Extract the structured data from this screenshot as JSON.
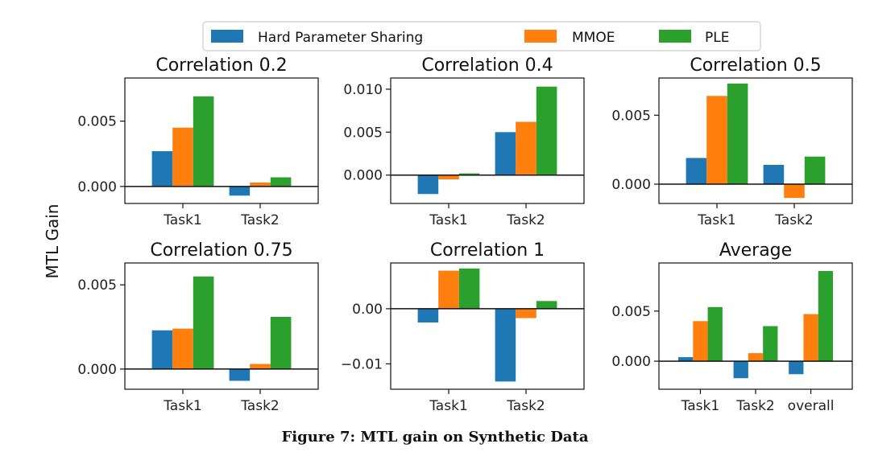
{
  "caption": "Figure 7: MTL gain on Synthetic Data",
  "ylabel": "MTL Gain",
  "legend": [
    {
      "name": "Hard Parameter Sharing",
      "color": "#1f77b4"
    },
    {
      "name": "MMOE",
      "color": "#ff7f0e"
    },
    {
      "name": "PLE",
      "color": "#2ca02c"
    }
  ],
  "chart_data": [
    {
      "type": "bar",
      "title": "Correlation 0.2",
      "categories": [
        "Task1",
        "Task2"
      ],
      "series": [
        {
          "name": "Hard Parameter Sharing",
          "values": [
            0.0027,
            -0.0007
          ]
        },
        {
          "name": "MMOE",
          "values": [
            0.0045,
            0.0003
          ]
        },
        {
          "name": "PLE",
          "values": [
            0.0069,
            0.0007
          ]
        }
      ],
      "yticks": [
        "0.000",
        "0.005"
      ],
      "ytick_values": [
        0,
        0.005
      ],
      "ylim": [
        -0.0013,
        0.0083
      ]
    },
    {
      "type": "bar",
      "title": "Correlation 0.4",
      "categories": [
        "Task1",
        "Task2"
      ],
      "series": [
        {
          "name": "Hard Parameter Sharing",
          "values": [
            -0.0022,
            0.005
          ]
        },
        {
          "name": "MMOE",
          "values": [
            -0.0005,
            0.0062
          ]
        },
        {
          "name": "PLE",
          "values": [
            0.0002,
            0.0103
          ]
        }
      ],
      "yticks": [
        "0.000",
        "0.005",
        "0.010"
      ],
      "ytick_values": [
        0,
        0.005,
        0.01
      ],
      "ylim": [
        -0.0033,
        0.0113
      ]
    },
    {
      "type": "bar",
      "title": "Correlation 0.5",
      "categories": [
        "Task1",
        "Task2"
      ],
      "series": [
        {
          "name": "Hard Parameter Sharing",
          "values": [
            0.0019,
            0.0014
          ]
        },
        {
          "name": "MMOE",
          "values": [
            0.0064,
            -0.001
          ]
        },
        {
          "name": "PLE",
          "values": [
            0.0073,
            0.002
          ]
        }
      ],
      "yticks": [
        "0.000",
        "0.005"
      ],
      "ytick_values": [
        0,
        0.005
      ],
      "ylim": [
        -0.0014,
        0.0077
      ]
    },
    {
      "type": "bar",
      "title": "Correlation 0.75",
      "categories": [
        "Task1",
        "Task2"
      ],
      "series": [
        {
          "name": "Hard Parameter Sharing",
          "values": [
            0.0023,
            -0.0007
          ]
        },
        {
          "name": "MMOE",
          "values": [
            0.0024,
            0.0003
          ]
        },
        {
          "name": "PLE",
          "values": [
            0.0055,
            0.0031
          ]
        }
      ],
      "yticks": [
        "0.000",
        "0.005"
      ],
      "ytick_values": [
        0,
        0.005
      ],
      "ylim": [
        -0.0012,
        0.0063
      ]
    },
    {
      "type": "bar",
      "title": "Correlation 1",
      "categories": [
        "Task1",
        "Task2"
      ],
      "series": [
        {
          "name": "Hard Parameter Sharing",
          "values": [
            -0.0025,
            -0.0132
          ]
        },
        {
          "name": "MMOE",
          "values": [
            0.0069,
            -0.0017
          ]
        },
        {
          "name": "PLE",
          "values": [
            0.0073,
            0.0014
          ]
        }
      ],
      "yticks": [
        "0.00",
        "−0.01"
      ],
      "ytick_values": [
        0,
        -0.01
      ],
      "ylim": [
        -0.0146,
        0.0083
      ]
    },
    {
      "type": "bar",
      "title": "Average",
      "categories": [
        "Task1",
        "Task2",
        "overall"
      ],
      "series": [
        {
          "name": "Hard Parameter Sharing",
          "values": [
            0.0004,
            -0.0017,
            -0.0013
          ]
        },
        {
          "name": "MMOE",
          "values": [
            0.004,
            0.0008,
            0.0047
          ]
        },
        {
          "name": "PLE",
          "values": [
            0.0054,
            0.0035,
            0.009
          ]
        }
      ],
      "yticks": [
        "0.000",
        "0.005"
      ],
      "ytick_values": [
        0,
        0.005
      ],
      "ylim": [
        -0.0028,
        0.0098
      ]
    }
  ]
}
